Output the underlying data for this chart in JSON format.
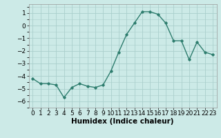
{
  "x": [
    0,
    1,
    2,
    3,
    4,
    5,
    6,
    7,
    8,
    9,
    10,
    11,
    12,
    13,
    14,
    15,
    16,
    17,
    18,
    19,
    20,
    21,
    22,
    23
  ],
  "y": [
    -4.2,
    -4.6,
    -4.6,
    -4.7,
    -5.7,
    -4.9,
    -4.6,
    -4.8,
    -4.9,
    -4.7,
    -3.6,
    -2.1,
    -0.7,
    0.2,
    1.1,
    1.1,
    0.9,
    0.2,
    -1.2,
    -1.2,
    -2.7,
    -1.3,
    -2.1,
    -2.3
  ],
  "line_color": "#2e7d6e",
  "marker": "D",
  "marker_size": 1.8,
  "background_color": "#cceae7",
  "grid_color": "#aacfcc",
  "xlabel": "Humidex (Indice chaleur)",
  "ylim": [
    -6.5,
    1.7
  ],
  "xlim": [
    -0.5,
    23.5
  ],
  "yticks": [
    -6,
    -5,
    -4,
    -3,
    -2,
    -1,
    0,
    1
  ],
  "xticks": [
    0,
    1,
    2,
    3,
    4,
    5,
    6,
    7,
    8,
    9,
    10,
    11,
    12,
    13,
    14,
    15,
    16,
    17,
    18,
    19,
    20,
    21,
    22,
    23
  ],
  "xtick_labels": [
    "0",
    "1",
    "2",
    "3",
    "4",
    "5",
    "6",
    "7",
    "8",
    "9",
    "10",
    "11",
    "12",
    "13",
    "14",
    "15",
    "16",
    "17",
    "18",
    "19",
    "20",
    "21",
    "22",
    "23"
  ],
  "tick_fontsize": 6.5,
  "xlabel_fontsize": 7.5,
  "linewidth": 1.0
}
